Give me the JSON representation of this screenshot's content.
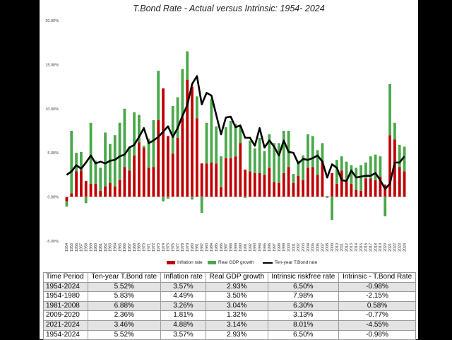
{
  "chart_data": {
    "type": "bar",
    "title": "T.Bond Rate - Actual versus Intrinsic: 1954- 2024",
    "xlabel": "",
    "ylabel": "",
    "ylim": [
      -5,
      20
    ],
    "y_ticks": [
      "20.00%",
      "15.00%",
      "10.00%",
      "5.00%",
      "0.00%",
      "-5.00%"
    ],
    "y_tick_values": [
      20,
      15,
      10,
      5,
      0,
      -5
    ],
    "grid": false,
    "legend_position": "bottom",
    "stacked": true,
    "categories": [
      "1954",
      "1955",
      "1956",
      "1957",
      "1958",
      "1959",
      "1960",
      "1961",
      "1962",
      "1963",
      "1964",
      "1965",
      "1966",
      "1967",
      "1968",
      "1969",
      "1970",
      "1971",
      "1972",
      "1973",
      "1974",
      "1975",
      "1976",
      "1977",
      "1978",
      "1979",
      "1980",
      "1981",
      "1982",
      "1983",
      "1984",
      "1985",
      "1986",
      "1987",
      "1988",
      "1989",
      "1990",
      "1991",
      "1992",
      "1993",
      "1994",
      "1995",
      "1996",
      "1997",
      "1998",
      "1999",
      "2000",
      "2001",
      "2002",
      "2003",
      "2004",
      "2005",
      "2006",
      "2007",
      "2008",
      "2009",
      "2010",
      "2011",
      "2012",
      "2013",
      "2014",
      "2015",
      "2016",
      "2017",
      "2018",
      "2019",
      "2020",
      "2021",
      "2022",
      "2023",
      "2024"
    ],
    "series": [
      {
        "name": "Inflation rate",
        "kind": "bar",
        "color": "#c00000",
        "values": [
          -0.5,
          0.4,
          2.9,
          3.0,
          1.8,
          1.5,
          1.5,
          0.7,
          1.2,
          1.6,
          1.2,
          1.9,
          3.4,
          3.0,
          4.7,
          6.2,
          5.6,
          3.3,
          3.4,
          8.7,
          12.3,
          6.9,
          4.9,
          6.7,
          9.0,
          13.3,
          12.5,
          8.9,
          3.8,
          3.8,
          3.9,
          3.8,
          1.1,
          4.4,
          4.4,
          4.6,
          6.1,
          3.1,
          2.9,
          2.7,
          2.7,
          2.5,
          3.3,
          1.7,
          1.6,
          2.7,
          3.4,
          1.6,
          2.4,
          1.9,
          3.3,
          3.4,
          2.5,
          4.1,
          0.1,
          2.7,
          1.5,
          3.0,
          1.7,
          1.5,
          0.8,
          0.7,
          2.1,
          2.1,
          1.9,
          2.3,
          1.4,
          7.0,
          6.5,
          3.4,
          2.9
        ]
      },
      {
        "name": "Real GDP growth",
        "kind": "bar",
        "color": "#4aa84a",
        "values": [
          -0.6,
          7.1,
          2.1,
          2.1,
          -0.7,
          6.9,
          2.6,
          2.6,
          6.1,
          4.4,
          5.8,
          6.5,
          6.6,
          2.7,
          4.9,
          3.1,
          0.2,
          3.3,
          5.3,
          5.6,
          -0.5,
          -0.2,
          5.4,
          4.6,
          5.5,
          3.2,
          -0.3,
          2.5,
          -1.8,
          4.6,
          7.2,
          4.2,
          3.5,
          3.5,
          4.2,
          3.7,
          1.9,
          -0.1,
          3.5,
          2.8,
          4.0,
          2.7,
          3.8,
          4.4,
          4.5,
          4.8,
          4.1,
          1.0,
          1.7,
          2.8,
          3.8,
          3.5,
          2.8,
          2.0,
          -0.1,
          -2.6,
          2.7,
          1.6,
          2.3,
          2.1,
          2.5,
          2.9,
          1.8,
          2.5,
          2.9,
          2.3,
          -2.2,
          5.8,
          1.9,
          2.5,
          2.8
        ]
      },
      {
        "name": "Ten-year T.Bond rate",
        "kind": "line",
        "color": "#000000",
        "values": [
          2.5,
          2.9,
          3.6,
          3.2,
          3.9,
          4.7,
          3.8,
          4.0,
          3.8,
          4.1,
          4.2,
          4.6,
          4.8,
          5.6,
          5.9,
          6.8,
          7.8,
          6.1,
          6.4,
          6.8,
          7.4,
          8.0,
          6.8,
          7.8,
          9.2,
          10.4,
          12.8,
          13.7,
          10.5,
          11.8,
          11.5,
          9.3,
          7.1,
          9.0,
          9.1,
          7.9,
          8.1,
          6.7,
          6.7,
          5.8,
          7.8,
          5.6,
          6.4,
          5.7,
          4.7,
          6.4,
          5.1,
          5.0,
          3.8,
          4.3,
          4.2,
          4.4,
          4.7,
          4.0,
          2.2,
          3.7,
          3.3,
          1.9,
          1.8,
          3.0,
          2.2,
          2.3,
          2.4,
          2.4,
          2.7,
          1.9,
          0.9,
          1.5,
          3.9,
          3.9,
          4.6
        ]
      }
    ]
  },
  "legend": [
    {
      "label": "Inflation rate",
      "kind": "swatch",
      "color": "#c00000"
    },
    {
      "label": "Real GDP growth",
      "kind": "swatch",
      "color": "#4aa84a"
    },
    {
      "label": "Ten-year T.Bond rate",
      "kind": "line",
      "color": "#000000"
    }
  ],
  "table": {
    "headers": [
      "Time Period",
      "Ten-year T.Bond rate",
      "Inflation rate",
      "Real GDP growth",
      "Intrinsic riskfree rate",
      "Intrinsic - T.Bond Rate"
    ],
    "rows": [
      {
        "shaded": true,
        "cells": [
          "1954-2024",
          "5.52%",
          "3.57%",
          "2.93%",
          "6.50%",
          "-0.98%"
        ]
      },
      {
        "shaded": false,
        "cells": [
          "1954-1980",
          "5.83%",
          "4.49%",
          "3.50%",
          "7.98%",
          "-2.15%"
        ]
      },
      {
        "shaded": true,
        "cells": [
          "1981-2008",
          "6.88%",
          "3.26%",
          "3.04%",
          "6.30%",
          "0.58%"
        ]
      },
      {
        "shaded": false,
        "cells": [
          "2009-2020",
          "2.36%",
          "1.81%",
          "1.32%",
          "3.13%",
          "-0.77%"
        ]
      },
      {
        "shaded": true,
        "cells": [
          "2021-2024",
          "3.46%",
          "4.88%",
          "3.14%",
          "8.01%",
          "-4.55%"
        ]
      },
      {
        "shaded": false,
        "cells": [
          "1954-2024",
          "5.52%",
          "3.57%",
          "2.93%",
          "6.50%",
          "-0.98%"
        ]
      }
    ]
  }
}
